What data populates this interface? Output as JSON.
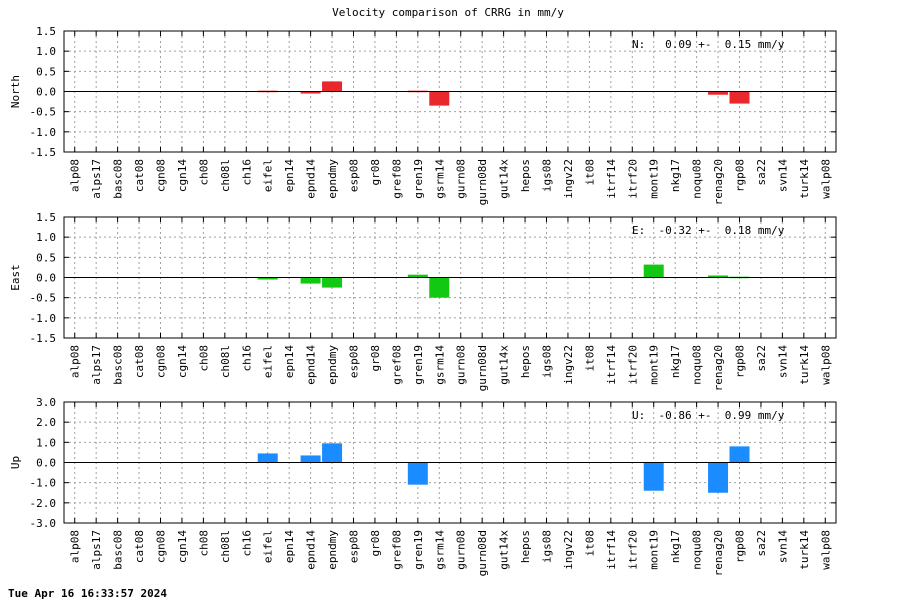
{
  "title": "Velocity comparison of CRRG in mm/y",
  "timestamp": "Tue Apr 16 16:33:57 2024",
  "colors": {
    "north": "#e8282c",
    "east": "#12c812",
    "up": "#1a8cff"
  },
  "chart_data": {
    "type": "bar",
    "categories": [
      "alp08",
      "alps17",
      "basc08",
      "cat08",
      "cgn08",
      "cgn14",
      "ch08",
      "ch08l",
      "ch16",
      "eifel",
      "epn14",
      "epnd14",
      "epndmy",
      "esp08",
      "gr08",
      "gref08",
      "gren19",
      "gsrm14",
      "gurn08",
      "gurn08d",
      "gut14x",
      "hepos",
      "igs08",
      "ingv22",
      "it08",
      "itrf14",
      "itrf20",
      "mont19",
      "nkg17",
      "noqu08",
      "renag20",
      "rgp08",
      "sa22",
      "svn14",
      "turk14",
      "walp08"
    ],
    "panels": [
      {
        "key": "north",
        "ylabel": "North",
        "summary": "N:   0.09 +-  0.15 mm/y",
        "ylim": [
          -1.5,
          1.5
        ],
        "yticks": [
          "1.5",
          "1.0",
          "0.5",
          "0.0",
          "-0.5",
          "-1.0",
          "-1.5"
        ],
        "values": [
          0,
          0,
          0,
          0,
          0,
          0,
          0,
          0,
          0,
          0.02,
          0,
          -0.05,
          0.25,
          0,
          0,
          0,
          0.02,
          -0.35,
          0,
          0,
          0,
          0,
          0,
          0,
          0,
          0,
          0,
          0,
          0,
          0,
          -0.08,
          -0.3,
          0,
          0,
          0,
          0
        ]
      },
      {
        "key": "east",
        "ylabel": "East",
        "summary": "E:  -0.32 +-  0.18 mm/y",
        "ylim": [
          -1.5,
          1.5
        ],
        "yticks": [
          "1.5",
          "1.0",
          "0.5",
          "0.0",
          "-0.5",
          "-1.0",
          "-1.5"
        ],
        "values": [
          0,
          0,
          0,
          0,
          0,
          0,
          0,
          0,
          0,
          -0.05,
          0,
          -0.15,
          -0.25,
          0,
          0,
          0,
          0.07,
          -0.5,
          0,
          0,
          0,
          0,
          0,
          0,
          0,
          0,
          0,
          0.32,
          0,
          0,
          0.05,
          0.02,
          0,
          0,
          0,
          0
        ]
      },
      {
        "key": "up",
        "ylabel": "Up",
        "summary": "U:  -0.86 +-  0.99 mm/y",
        "ylim": [
          -3.0,
          3.0
        ],
        "yticks": [
          "3.0",
          "2.0",
          "1.0",
          "0.0",
          "-1.0",
          "-2.0",
          "-3.0"
        ],
        "values": [
          0,
          0,
          0,
          0,
          0,
          0,
          0,
          0,
          0,
          0.45,
          0,
          0.35,
          0.95,
          0,
          0,
          0,
          -1.1,
          0,
          0,
          0,
          0,
          0,
          0,
          0,
          0,
          0,
          0,
          -1.4,
          0,
          0,
          -1.5,
          0.8,
          0,
          0,
          0,
          0
        ]
      }
    ]
  }
}
